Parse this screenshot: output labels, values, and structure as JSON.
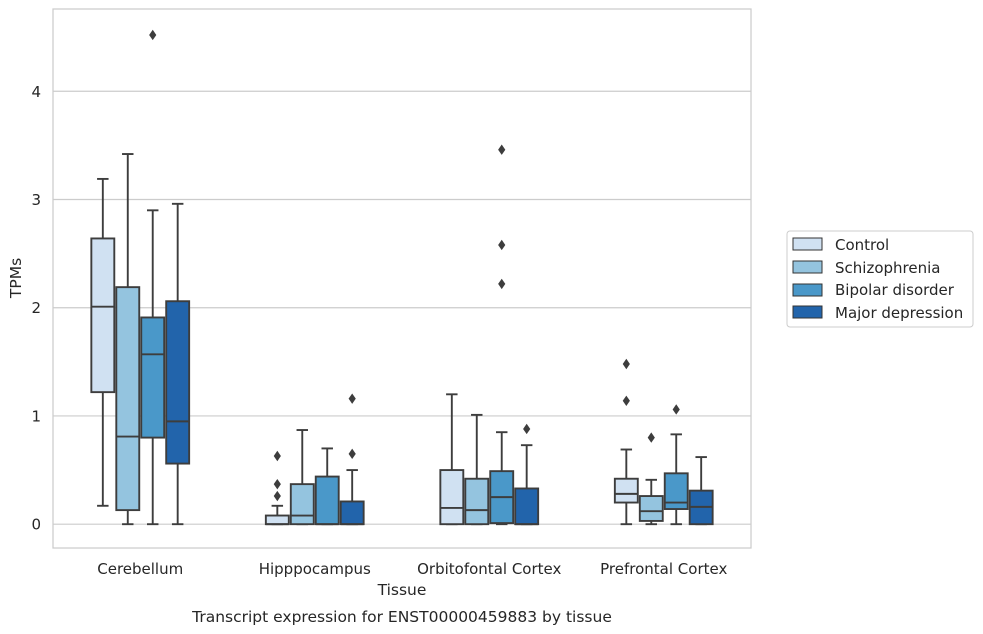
{
  "chart_data": {
    "type": "box",
    "caption": "Transcript expression for ENST00000459883 by tissue",
    "xlabel": "Tissue",
    "ylabel": "TPMs",
    "ylim": [
      -0.22,
      4.76
    ],
    "yticks": [
      0,
      1,
      2,
      3,
      4
    ],
    "grid": "horizontal",
    "legend_position": "right",
    "categories": [
      "Cerebellum",
      "Hipppocampus",
      "Orbitofontal Cortex",
      "Prefrontal Cortex"
    ],
    "series": [
      {
        "name": "Control",
        "color": "#d0e1f2",
        "boxes": [
          {
            "whislo": 0.17,
            "q1": 1.22,
            "med": 2.01,
            "q3": 2.64,
            "whishi": 3.19,
            "fliers": []
          },
          {
            "whislo": 0.0,
            "q1": 0.0,
            "med": 0.0,
            "q3": 0.08,
            "whishi": 0.17,
            "fliers": [
              0.26,
              0.37,
              0.63
            ]
          },
          {
            "whislo": 0.0,
            "q1": 0.0,
            "med": 0.15,
            "q3": 0.5,
            "whishi": 1.2,
            "fliers": []
          },
          {
            "whislo": 0.0,
            "q1": 0.2,
            "med": 0.28,
            "q3": 0.42,
            "whishi": 0.69,
            "fliers": [
              1.14,
              1.48
            ]
          }
        ]
      },
      {
        "name": "Schizophrenia",
        "color": "#94c4df",
        "boxes": [
          {
            "whislo": 0.0,
            "q1": 0.13,
            "med": 0.81,
            "q3": 2.19,
            "whishi": 3.42,
            "fliers": []
          },
          {
            "whislo": 0.0,
            "q1": 0.0,
            "med": 0.08,
            "q3": 0.37,
            "whishi": 0.87,
            "fliers": []
          },
          {
            "whislo": 0.0,
            "q1": 0.0,
            "med": 0.13,
            "q3": 0.42,
            "whishi": 1.01,
            "fliers": []
          },
          {
            "whislo": 0.0,
            "q1": 0.03,
            "med": 0.12,
            "q3": 0.26,
            "whishi": 0.41,
            "fliers": [
              0.8
            ]
          }
        ]
      },
      {
        "name": "Bipolar disorder",
        "color": "#4a98c9",
        "boxes": [
          {
            "whislo": 0.0,
            "q1": 0.8,
            "med": 1.57,
            "q3": 1.91,
            "whishi": 2.9,
            "fliers": [
              4.52
            ]
          },
          {
            "whislo": 0.0,
            "q1": 0.0,
            "med": 0.0,
            "q3": 0.44,
            "whishi": 0.7,
            "fliers": []
          },
          {
            "whislo": 0.0,
            "q1": 0.01,
            "med": 0.25,
            "q3": 0.49,
            "whishi": 0.85,
            "fliers": [
              2.22,
              2.58,
              3.46
            ]
          },
          {
            "whislo": 0.0,
            "q1": 0.14,
            "med": 0.2,
            "q3": 0.47,
            "whishi": 0.83,
            "fliers": [
              1.06
            ]
          }
        ]
      },
      {
        "name": "Major depression",
        "color": "#2264ab",
        "boxes": [
          {
            "whislo": 0.0,
            "q1": 0.56,
            "med": 0.95,
            "q3": 2.06,
            "whishi": 2.96,
            "fliers": []
          },
          {
            "whislo": 0.0,
            "q1": 0.0,
            "med": 0.0,
            "q3": 0.21,
            "whishi": 0.5,
            "fliers": [
              0.65,
              1.16
            ]
          },
          {
            "whislo": 0.0,
            "q1": 0.0,
            "med": 0.0,
            "q3": 0.33,
            "whishi": 0.73,
            "fliers": [
              0.88
            ]
          },
          {
            "whislo": 0.0,
            "q1": 0.0,
            "med": 0.16,
            "q3": 0.31,
            "whishi": 0.62,
            "fliers": []
          }
        ]
      }
    ]
  }
}
